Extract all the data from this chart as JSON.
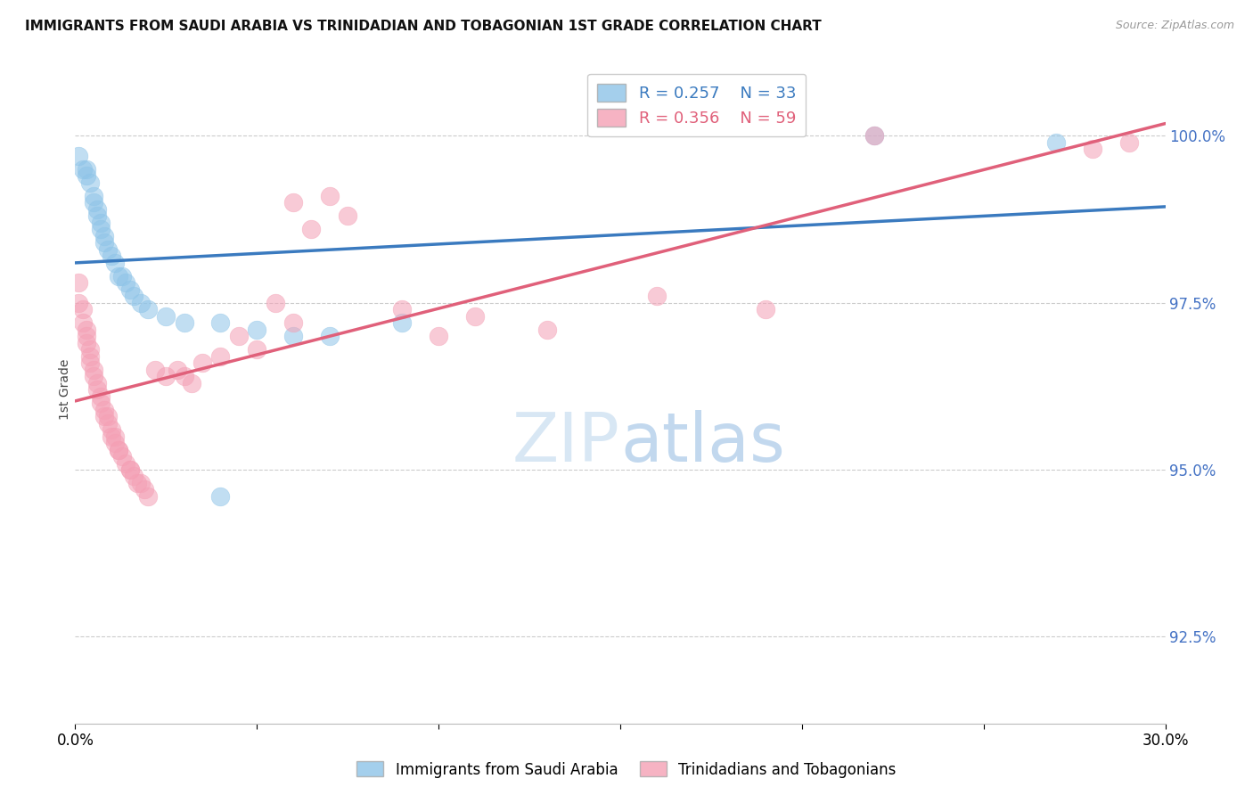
{
  "title": "IMMIGRANTS FROM SAUDI ARABIA VS TRINIDADIAN AND TOBAGONIAN 1ST GRADE CORRELATION CHART",
  "source": "Source: ZipAtlas.com",
  "ylabel": "1st Grade",
  "y_ticks": [
    92.5,
    95.0,
    97.5,
    100.0
  ],
  "y_tick_labels": [
    "92.5%",
    "95.0%",
    "97.5%",
    "100.0%"
  ],
  "xlim": [
    0.0,
    0.3
  ],
  "ylim": [
    91.2,
    101.2
  ],
  "legend_blue_r": "0.257",
  "legend_blue_n": "33",
  "legend_pink_r": "0.356",
  "legend_pink_n": "59",
  "blue_color": "#8ec4e8",
  "pink_color": "#f4a0b5",
  "blue_line_color": "#3a7abf",
  "pink_line_color": "#e0607a",
  "legend_label_blue": "Immigrants from Saudi Arabia",
  "legend_label_pink": "Trinidadians and Tobagonians",
  "blue_x": [
    0.001,
    0.002,
    0.003,
    0.003,
    0.004,
    0.005,
    0.005,
    0.006,
    0.006,
    0.007,
    0.007,
    0.008,
    0.008,
    0.009,
    0.01,
    0.011,
    0.012,
    0.013,
    0.014,
    0.015,
    0.016,
    0.018,
    0.02,
    0.025,
    0.03,
    0.04,
    0.05,
    0.06,
    0.07,
    0.09,
    0.04,
    0.22,
    0.27
  ],
  "blue_y": [
    99.7,
    99.5,
    99.5,
    99.4,
    99.3,
    99.1,
    99.0,
    98.9,
    98.8,
    98.7,
    98.6,
    98.5,
    98.4,
    98.3,
    98.2,
    98.1,
    97.9,
    97.9,
    97.8,
    97.7,
    97.6,
    97.5,
    97.4,
    97.3,
    97.2,
    97.2,
    97.1,
    97.0,
    97.0,
    97.2,
    94.6,
    100.0,
    99.9
  ],
  "pink_x": [
    0.001,
    0.001,
    0.002,
    0.002,
    0.003,
    0.003,
    0.003,
    0.004,
    0.004,
    0.004,
    0.005,
    0.005,
    0.006,
    0.006,
    0.007,
    0.007,
    0.008,
    0.008,
    0.009,
    0.009,
    0.01,
    0.01,
    0.011,
    0.011,
    0.012,
    0.012,
    0.013,
    0.014,
    0.015,
    0.015,
    0.016,
    0.017,
    0.018,
    0.019,
    0.02,
    0.022,
    0.025,
    0.028,
    0.03,
    0.032,
    0.035,
    0.04,
    0.045,
    0.05,
    0.055,
    0.06,
    0.06,
    0.065,
    0.07,
    0.075,
    0.09,
    0.1,
    0.11,
    0.13,
    0.16,
    0.19,
    0.22,
    0.28,
    0.29
  ],
  "pink_y": [
    97.8,
    97.5,
    97.4,
    97.2,
    97.1,
    97.0,
    96.9,
    96.8,
    96.7,
    96.6,
    96.5,
    96.4,
    96.3,
    96.2,
    96.1,
    96.0,
    95.9,
    95.8,
    95.8,
    95.7,
    95.6,
    95.5,
    95.5,
    95.4,
    95.3,
    95.3,
    95.2,
    95.1,
    95.0,
    95.0,
    94.9,
    94.8,
    94.8,
    94.7,
    94.6,
    96.5,
    96.4,
    96.5,
    96.4,
    96.3,
    96.6,
    96.7,
    97.0,
    96.8,
    97.5,
    97.2,
    99.0,
    98.6,
    99.1,
    98.8,
    97.4,
    97.0,
    97.3,
    97.1,
    97.6,
    97.4,
    100.0,
    99.8,
    99.9
  ]
}
